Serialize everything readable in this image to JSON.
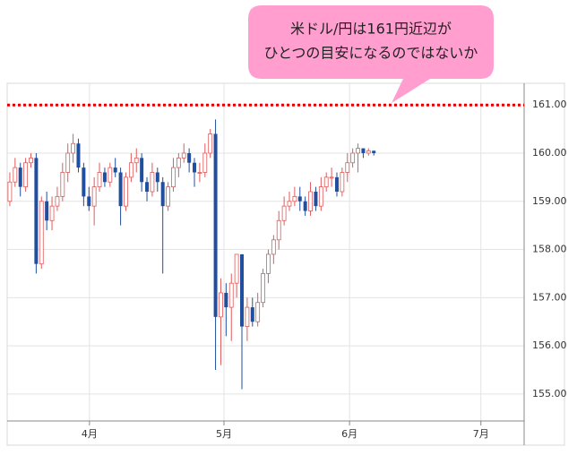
{
  "chart_data": {
    "type": "candlestick",
    "annotation": [
      "米ドル/円は161円近辺が",
      "ひとつの目安になるのではないか"
    ],
    "reference_lines": [
      {
        "value": 161,
        "color": "#e00000"
      }
    ],
    "up_color": "#e05a5a",
    "down_color": "#1f4f9e",
    "grid": true,
    "x": [
      1,
      2,
      3,
      4,
      5,
      6,
      7,
      8,
      9,
      10,
      11,
      12,
      13,
      14,
      15,
      16,
      17,
      18,
      19,
      20,
      21,
      22,
      23,
      24,
      25,
      26,
      27,
      28,
      29,
      30,
      31,
      32,
      33,
      34,
      35,
      36,
      37,
      38,
      39,
      40,
      41,
      42,
      43,
      44,
      45,
      46,
      47,
      48,
      49,
      50,
      51,
      52,
      53,
      54,
      55,
      56,
      57,
      58,
      59,
      60,
      61,
      62,
      63,
      64,
      65,
      66,
      67,
      68,
      69,
      70
    ],
    "open": [
      159.0,
      159.4,
      159.7,
      159.3,
      159.8,
      159.9,
      157.7,
      159.0,
      158.6,
      158.9,
      159.1,
      159.6,
      160.0,
      160.2,
      159.7,
      159.1,
      158.9,
      159.3,
      159.6,
      159.4,
      159.7,
      159.6,
      158.9,
      159.5,
      159.8,
      159.9,
      159.4,
      159.2,
      159.6,
      159.4,
      158.9,
      159.3,
      159.7,
      159.9,
      160.0,
      159.8,
      159.6,
      159.6,
      160.0,
      160.4,
      156.6,
      157.1,
      156.8,
      157.3,
      157.9,
      156.4,
      156.8,
      156.5,
      156.9,
      157.5,
      157.9,
      158.2,
      158.6,
      158.9,
      159.0,
      159.1,
      159.0,
      158.8,
      159.2,
      158.9,
      159.3,
      159.5,
      159.5,
      159.2,
      159.6,
      159.8,
      160.0,
      160.1,
      160.0,
      160.05
    ],
    "high": [
      159.6,
      159.9,
      159.8,
      159.9,
      160.0,
      160.0,
      159.1,
      159.2,
      159.1,
      159.3,
      159.8,
      160.2,
      160.4,
      160.3,
      159.8,
      159.3,
      159.5,
      159.8,
      159.7,
      159.8,
      159.9,
      159.7,
      159.6,
      160.0,
      160.1,
      160.0,
      159.5,
      159.8,
      159.7,
      159.5,
      159.4,
      159.9,
      160.0,
      160.2,
      160.1,
      159.9,
      159.8,
      160.2,
      160.5,
      160.7,
      157.4,
      157.3,
      157.5,
      157.9,
      157.9,
      157.0,
      157.0,
      157.1,
      157.6,
      158.0,
      158.3,
      158.8,
      159.1,
      159.2,
      159.3,
      159.3,
      159.1,
      159.4,
      159.3,
      159.5,
      159.6,
      159.7,
      159.6,
      159.7,
      160.0,
      160.1,
      160.2,
      160.1,
      160.1,
      160.05
    ],
    "low": [
      158.9,
      159.3,
      159.1,
      159.2,
      159.7,
      157.5,
      157.6,
      158.4,
      158.4,
      158.8,
      159.0,
      159.4,
      159.8,
      159.6,
      158.9,
      158.8,
      158.5,
      159.2,
      159.3,
      159.3,
      159.5,
      158.5,
      158.8,
      159.4,
      159.6,
      159.2,
      159.0,
      159.1,
      159.2,
      157.5,
      158.8,
      159.2,
      159.5,
      159.8,
      159.6,
      159.3,
      159.4,
      159.5,
      159.9,
      155.5,
      155.6,
      156.2,
      156.1,
      157.0,
      155.1,
      156.1,
      156.4,
      156.4,
      156.8,
      157.3,
      157.7,
      158.0,
      158.5,
      158.8,
      158.9,
      158.8,
      158.7,
      158.7,
      158.8,
      158.8,
      159.2,
      159.3,
      159.1,
      159.1,
      159.4,
      159.7,
      159.6,
      159.9,
      159.95,
      159.95
    ],
    "close": [
      159.4,
      159.7,
      159.3,
      159.8,
      159.9,
      157.7,
      159.0,
      158.6,
      158.9,
      159.1,
      159.6,
      160.0,
      160.2,
      159.7,
      159.1,
      158.9,
      159.3,
      159.6,
      159.4,
      159.7,
      159.6,
      158.9,
      159.5,
      159.8,
      159.9,
      159.4,
      159.2,
      159.6,
      159.4,
      158.9,
      159.3,
      159.7,
      159.9,
      160.0,
      159.8,
      159.6,
      159.6,
      160.0,
      160.4,
      156.6,
      157.1,
      156.8,
      157.3,
      157.9,
      156.4,
      156.8,
      156.5,
      156.9,
      157.5,
      157.9,
      158.2,
      158.6,
      158.9,
      159.0,
      159.1,
      159.0,
      158.8,
      159.2,
      158.9,
      159.3,
      159.5,
      159.5,
      159.2,
      159.6,
      159.8,
      160.0,
      160.1,
      160.0,
      160.05,
      160.0
    ],
    "xlim": [
      0.5,
      98.5
    ],
    "xticks": [
      {
        "value": 16.1,
        "label": "4月"
      },
      {
        "value": 41.6,
        "label": "5月"
      },
      {
        "value": 65.4,
        "label": "6月"
      },
      {
        "value": 90.3,
        "label": "7月"
      }
    ],
    "ylim": [
      154.44,
      161.45
    ],
    "yticks": [
      {
        "value": 155,
        "label": "155.00"
      },
      {
        "value": 156,
        "label": "156.00"
      },
      {
        "value": 157,
        "label": "157.00"
      },
      {
        "value": 158,
        "label": "158.00"
      },
      {
        "value": 159,
        "label": "159.00"
      },
      {
        "value": 160,
        "label": "160.00"
      },
      {
        "value": 161,
        "label": "161.00"
      }
    ]
  }
}
